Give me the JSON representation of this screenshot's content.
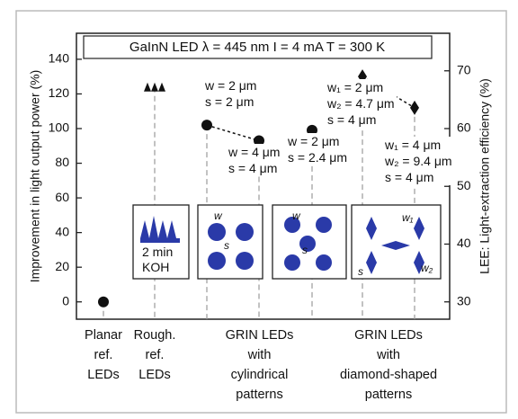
{
  "chart_data": {
    "type": "scatter",
    "title": "GaInN LED  λ = 445 nm  I = 4 mA  T = 300 K",
    "y_label": "Improvement in light output power (%)",
    "y2_label": "LEE: Light-extraction efficiency (%)",
    "categories": [
      "Planar\nref.\nLEDs",
      "Rough.\nref.\nLEDs",
      null,
      null,
      null,
      null,
      null
    ],
    "groups": [
      {
        "label": "GRIN LEDs\nwith\ncylindrical\npatterns",
        "span": [
          2,
          4
        ]
      },
      {
        "label": "GRIN LEDs\nwith\ndiamond-shaped\npatterns",
        "span": [
          5,
          6
        ]
      }
    ],
    "series": [
      {
        "color": "#111111",
        "values": [
          0,
          124,
          102,
          93,
          99,
          130,
          112
        ],
        "markers": [
          "circle",
          "triangle",
          "circle",
          "circle",
          "circle",
          "diamond",
          "diamond"
        ]
      }
    ],
    "ylim": [
      -10,
      155
    ],
    "yticks": [
      0,
      20,
      40,
      60,
      80,
      100,
      120,
      140
    ],
    "y2lim": [
      27,
      76.5
    ],
    "y2ticks": [
      30,
      40,
      50,
      60,
      70
    ],
    "annotations": [
      "w = 2 μm\ns = 2 μm",
      "w = 4 μm\ns = 4 μm",
      "w = 2 μm\ns = 2.4 μm",
      "w₁ = 2 μm\nw₂ = 4.7 μm\ns = 4 μm",
      "w₁ = 4 μm\nw₂ = 9.4 μm\ns = 4 μm"
    ],
    "insets": [
      {
        "labels": [
          "2 min\nKOH"
        ]
      },
      {
        "labels": [
          "w",
          "s"
        ]
      },
      {
        "labels": [
          "w",
          "s"
        ]
      },
      {
        "labels": [
          "w₁",
          "w₂",
          "s"
        ]
      }
    ]
  }
}
